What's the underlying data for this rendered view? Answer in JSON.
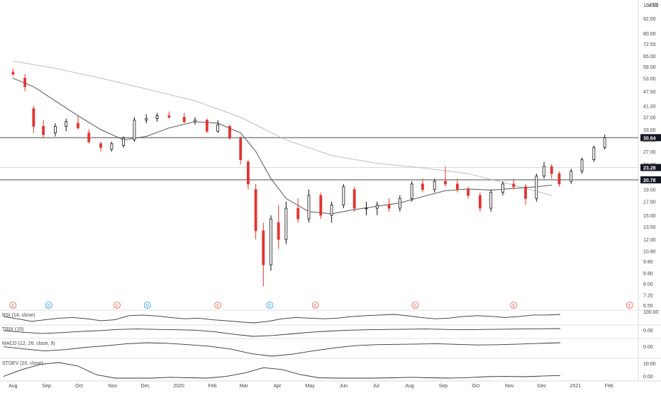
{
  "chart_data": {
    "type": "candlestick",
    "currency": "USD",
    "price_axis_ticks": [
      "104.00",
      "92.00",
      "80.00",
      "72.55",
      "65.00",
      "59.00",
      "53.00",
      "47.00",
      "41.00",
      "37.00",
      "33.00",
      "30.00",
      "27.00",
      "24.00",
      "21.00",
      "19.00",
      "17.00",
      "15.00",
      "13.50",
      "12.00",
      "10.80",
      "9.80",
      "8.80",
      "8.00",
      "7.20",
      "6.55"
    ],
    "level_labels": [
      "30.64",
      "23.28",
      "20.78"
    ],
    "time_axis": [
      "Aug",
      "Sep",
      "Oct",
      "Nov",
      "Dec",
      "2020",
      "Feb",
      "Mar",
      "Apr",
      "May",
      "Jun",
      "Jul",
      "Aug",
      "Sep",
      "Oct",
      "Nov",
      "Dec",
      "2021",
      "Feb"
    ],
    "ohlc": [
      {
        "d": "2019-08-01",
        "o": 56.0,
        "h": 58.0,
        "l": 54.0,
        "c": 55.0
      },
      {
        "d": "2019-08-12",
        "o": 53.0,
        "h": 55.0,
        "l": 47.0,
        "c": 49.0
      },
      {
        "d": "2019-08-20",
        "o": 40.0,
        "h": 41.0,
        "l": 32.0,
        "c": 34.0
      },
      {
        "d": "2019-08-29",
        "o": 34.0,
        "h": 36.0,
        "l": 30.5,
        "c": 31.5
      },
      {
        "d": "2019-09-09",
        "o": 32.0,
        "h": 35.0,
        "l": 31.0,
        "c": 34.0
      },
      {
        "d": "2019-09-19",
        "o": 34.0,
        "h": 36.5,
        "l": 32.5,
        "c": 35.5
      },
      {
        "d": "2019-09-30",
        "o": 35.0,
        "h": 37.5,
        "l": 33.0,
        "c": 33.5
      },
      {
        "d": "2019-10-10",
        "o": 32.0,
        "h": 33.0,
        "l": 29.0,
        "c": 29.5
      },
      {
        "d": "2019-10-21",
        "o": 29.0,
        "h": 29.5,
        "l": 27.0,
        "c": 28.0
      },
      {
        "d": "2019-10-31",
        "o": 27.5,
        "h": 29.5,
        "l": 27.0,
        "c": 29.0
      },
      {
        "d": "2019-11-11",
        "o": 28.5,
        "h": 31.0,
        "l": 28.0,
        "c": 30.5
      },
      {
        "d": "2019-11-21",
        "o": 30.0,
        "h": 37.0,
        "l": 29.5,
        "c": 36.0
      },
      {
        "d": "2019-12-02",
        "o": 36.0,
        "h": 38.0,
        "l": 35.0,
        "c": 36.5
      },
      {
        "d": "2019-12-12",
        "o": 36.5,
        "h": 38.5,
        "l": 35.5,
        "c": 37.5
      },
      {
        "d": "2019-12-23",
        "o": 37.5,
        "h": 39.0,
        "l": 36.5,
        "c": 37.0
      },
      {
        "d": "2020-01-06",
        "o": 37.0,
        "h": 38.5,
        "l": 35.0,
        "c": 35.5
      },
      {
        "d": "2020-01-16",
        "o": 35.5,
        "h": 37.0,
        "l": 34.5,
        "c": 36.0
      },
      {
        "d": "2020-01-27",
        "o": 36.0,
        "h": 36.5,
        "l": 32.0,
        "c": 32.5
      },
      {
        "d": "2020-02-06",
        "o": 32.5,
        "h": 36.0,
        "l": 32.0,
        "c": 34.5
      },
      {
        "d": "2020-02-17",
        "o": 34.0,
        "h": 34.5,
        "l": 30.0,
        "c": 30.5
      },
      {
        "d": "2020-02-27",
        "o": 30.5,
        "h": 31.0,
        "l": 24.0,
        "c": 25.0
      },
      {
        "d": "2020-03-05",
        "o": 24.5,
        "h": 25.0,
        "l": 19.0,
        "c": 20.0
      },
      {
        "d": "2020-03-12",
        "o": 19.0,
        "h": 20.0,
        "l": 12.0,
        "c": 13.0
      },
      {
        "d": "2020-03-19",
        "o": 13.0,
        "h": 14.0,
        "l": 7.8,
        "c": 9.5
      },
      {
        "d": "2020-03-26",
        "o": 9.5,
        "h": 15.0,
        "l": 9.0,
        "c": 14.5
      },
      {
        "d": "2020-04-02",
        "o": 14.0,
        "h": 16.5,
        "l": 11.0,
        "c": 12.0
      },
      {
        "d": "2020-04-09",
        "o": 12.0,
        "h": 17.0,
        "l": 11.5,
        "c": 16.0
      },
      {
        "d": "2020-04-20",
        "o": 16.0,
        "h": 17.5,
        "l": 14.0,
        "c": 14.5
      },
      {
        "d": "2020-04-30",
        "o": 14.5,
        "h": 19.0,
        "l": 14.0,
        "c": 18.0
      },
      {
        "d": "2020-05-11",
        "o": 18.0,
        "h": 18.5,
        "l": 14.5,
        "c": 15.0
      },
      {
        "d": "2020-05-21",
        "o": 15.0,
        "h": 17.0,
        "l": 14.0,
        "c": 16.5
      },
      {
        "d": "2020-06-01",
        "o": 16.5,
        "h": 20.0,
        "l": 16.0,
        "c": 19.5
      },
      {
        "d": "2020-06-11",
        "o": 19.0,
        "h": 19.5,
        "l": 15.5,
        "c": 16.0
      },
      {
        "d": "2020-06-22",
        "o": 16.0,
        "h": 17.0,
        "l": 15.0,
        "c": 16.0
      },
      {
        "d": "2020-07-02",
        "o": 16.0,
        "h": 17.0,
        "l": 15.0,
        "c": 16.5
      },
      {
        "d": "2020-07-13",
        "o": 16.5,
        "h": 17.5,
        "l": 15.5,
        "c": 16.0
      },
      {
        "d": "2020-07-23",
        "o": 16.0,
        "h": 18.0,
        "l": 15.5,
        "c": 17.5
      },
      {
        "d": "2020-08-03",
        "o": 17.5,
        "h": 20.5,
        "l": 17.0,
        "c": 20.0
      },
      {
        "d": "2020-08-13",
        "o": 20.0,
        "h": 21.0,
        "l": 18.5,
        "c": 19.0
      },
      {
        "d": "2020-08-24",
        "o": 19.0,
        "h": 21.0,
        "l": 18.5,
        "c": 20.5
      },
      {
        "d": "2020-09-03",
        "o": 20.5,
        "h": 23.5,
        "l": 19.5,
        "c": 20.0
      },
      {
        "d": "2020-09-14",
        "o": 20.0,
        "h": 21.0,
        "l": 18.5,
        "c": 19.0
      },
      {
        "d": "2020-09-24",
        "o": 19.0,
        "h": 19.5,
        "l": 17.5,
        "c": 18.0
      },
      {
        "d": "2020-10-05",
        "o": 18.0,
        "h": 18.5,
        "l": 15.5,
        "c": 16.0
      },
      {
        "d": "2020-10-15",
        "o": 16.0,
        "h": 19.0,
        "l": 15.5,
        "c": 18.5
      },
      {
        "d": "2020-10-26",
        "o": 18.5,
        "h": 20.5,
        "l": 18.0,
        "c": 20.0
      },
      {
        "d": "2020-11-05",
        "o": 20.0,
        "h": 21.0,
        "l": 19.0,
        "c": 19.5
      },
      {
        "d": "2020-11-16",
        "o": 19.5,
        "h": 20.0,
        "l": 16.5,
        "c": 17.5
      },
      {
        "d": "2020-11-26",
        "o": 17.5,
        "h": 22.0,
        "l": 17.0,
        "c": 21.5
      },
      {
        "d": "2020-12-03",
        "o": 21.5,
        "h": 24.5,
        "l": 21.0,
        "c": 23.5
      },
      {
        "d": "2020-12-10",
        "o": 23.5,
        "h": 24.0,
        "l": 21.0,
        "c": 22.0
      },
      {
        "d": "2020-12-17",
        "o": 22.0,
        "h": 22.5,
        "l": 19.5,
        "c": 20.0
      },
      {
        "d": "2020-12-28",
        "o": 20.5,
        "h": 23.0,
        "l": 20.0,
        "c": 22.5
      },
      {
        "d": "2021-01-07",
        "o": 22.5,
        "h": 25.5,
        "l": 22.0,
        "c": 25.0
      },
      {
        "d": "2021-01-18",
        "o": 25.0,
        "h": 28.5,
        "l": 24.5,
        "c": 28.0
      },
      {
        "d": "2021-01-28",
        "o": 28.0,
        "h": 31.5,
        "l": 27.5,
        "c": 30.64
      }
    ],
    "sma_short": [
      {
        "d": "2019-08-01",
        "v": 53.0
      },
      {
        "d": "2019-08-20",
        "v": 49.0
      },
      {
        "d": "2019-09-09",
        "v": 43.0
      },
      {
        "d": "2019-09-30",
        "v": 37.5
      },
      {
        "d": "2019-10-21",
        "v": 33.0
      },
      {
        "d": "2019-11-11",
        "v": 30.0
      },
      {
        "d": "2019-12-02",
        "v": 31.0
      },
      {
        "d": "2019-12-23",
        "v": 33.5
      },
      {
        "d": "2020-01-16",
        "v": 35.5
      },
      {
        "d": "2020-02-06",
        "v": 35.0
      },
      {
        "d": "2020-02-27",
        "v": 32.0
      },
      {
        "d": "2020-03-12",
        "v": 27.0
      },
      {
        "d": "2020-03-26",
        "v": 21.0
      },
      {
        "d": "2020-04-09",
        "v": 17.5
      },
      {
        "d": "2020-04-30",
        "v": 15.5
      },
      {
        "d": "2020-05-21",
        "v": 15.2
      },
      {
        "d": "2020-06-11",
        "v": 15.8
      },
      {
        "d": "2020-07-02",
        "v": 16.3
      },
      {
        "d": "2020-07-23",
        "v": 16.8
      },
      {
        "d": "2020-08-13",
        "v": 17.8
      },
      {
        "d": "2020-09-03",
        "v": 18.8
      },
      {
        "d": "2020-09-24",
        "v": 19.1
      },
      {
        "d": "2020-10-15",
        "v": 18.9
      },
      {
        "d": "2020-11-05",
        "v": 19.2
      },
      {
        "d": "2020-11-26",
        "v": 19.5
      },
      {
        "d": "2020-12-10",
        "v": 19.8
      }
    ],
    "sma_long": [
      {
        "d": "2019-08-01",
        "v": 62.0
      },
      {
        "d": "2019-09-09",
        "v": 58.0
      },
      {
        "d": "2019-10-21",
        "v": 53.0
      },
      {
        "d": "2019-12-02",
        "v": 48.0
      },
      {
        "d": "2020-01-16",
        "v": 43.0
      },
      {
        "d": "2020-02-27",
        "v": 37.0
      },
      {
        "d": "2020-04-09",
        "v": 30.0
      },
      {
        "d": "2020-05-21",
        "v": 26.0
      },
      {
        "d": "2020-07-02",
        "v": 24.2
      },
      {
        "d": "2020-08-13",
        "v": 23.2
      },
      {
        "d": "2020-09-24",
        "v": 22.0
      },
      {
        "d": "2020-11-05",
        "v": 19.8
      },
      {
        "d": "2020-12-10",
        "v": 18.0
      }
    ],
    "horizontal_levels": [
      30.64,
      23.28,
      20.78
    ],
    "event_markers": [
      {
        "d": "2019-08-01",
        "label": "E"
      },
      {
        "d": "2019-09-03",
        "label": "D"
      },
      {
        "d": "2019-11-05",
        "label": "E"
      },
      {
        "d": "2019-12-03",
        "label": "D"
      },
      {
        "d": "2020-02-06",
        "label": "E"
      },
      {
        "d": "2020-03-25",
        "label": "D"
      },
      {
        "d": "2020-05-06",
        "label": "E"
      },
      {
        "d": "2020-08-06",
        "label": "E"
      },
      {
        "d": "2020-11-05",
        "label": "E"
      },
      {
        "d": "2021-02-20",
        "label": "E"
      }
    ],
    "indicators": [
      {
        "name": "RSI (14, close)",
        "ticks": [
          "100.00"
        ],
        "series": [
          55,
          48,
          40,
          45,
          50,
          52,
          48,
          42,
          45,
          58,
          60,
          57,
          52,
          48,
          50,
          45,
          42,
          38,
          35,
          40,
          48,
          52,
          50,
          48,
          50,
          55,
          58,
          60,
          62,
          58,
          52,
          48,
          50,
          55,
          58,
          56,
          52,
          55,
          60,
          60,
          62
        ]
      },
      {
        "name": "TRIX (15)",
        "ticks": [
          "0.00"
        ],
        "series": [
          -0.2,
          -0.6,
          -0.9,
          -0.7,
          -0.4,
          -0.2,
          0.1,
          0.2,
          0.1,
          0.0,
          -0.1,
          -0.5,
          -1.1,
          -1.6,
          -1.4,
          -1.0,
          -0.6,
          -0.3,
          -0.1,
          0.0,
          0.1,
          0.15,
          0.2,
          0.1,
          0.0,
          0.1,
          0.15,
          0.2,
          0.25,
          0.3
        ]
      },
      {
        "name": "MACD (12, 26, close, 9)",
        "ticks": [
          "0.00"
        ],
        "series": [
          -0.3,
          -1.0,
          -1.6,
          -1.2,
          -0.5,
          0.0,
          0.6,
          0.9,
          0.7,
          0.3,
          -0.2,
          -1.0,
          -2.4,
          -3.2,
          -2.6,
          -1.6,
          -0.7,
          0.0,
          0.3,
          0.4,
          0.5,
          0.6,
          0.4,
          0.2,
          0.3,
          0.5,
          0.7,
          0.9
        ]
      },
      {
        "name": "STDEV (20, close)",
        "ticks": [
          "10.00",
          "0.00"
        ],
        "series": [
          2,
          6,
          9,
          10,
          8,
          3,
          1,
          1,
          1,
          1.5,
          1.2,
          1,
          2,
          4,
          7,
          6,
          3,
          1.2,
          1,
          1,
          1,
          1.2,
          1.5,
          1.2,
          1,
          1.3,
          1.8,
          2,
          1.8,
          2.2,
          2.5
        ]
      }
    ]
  }
}
